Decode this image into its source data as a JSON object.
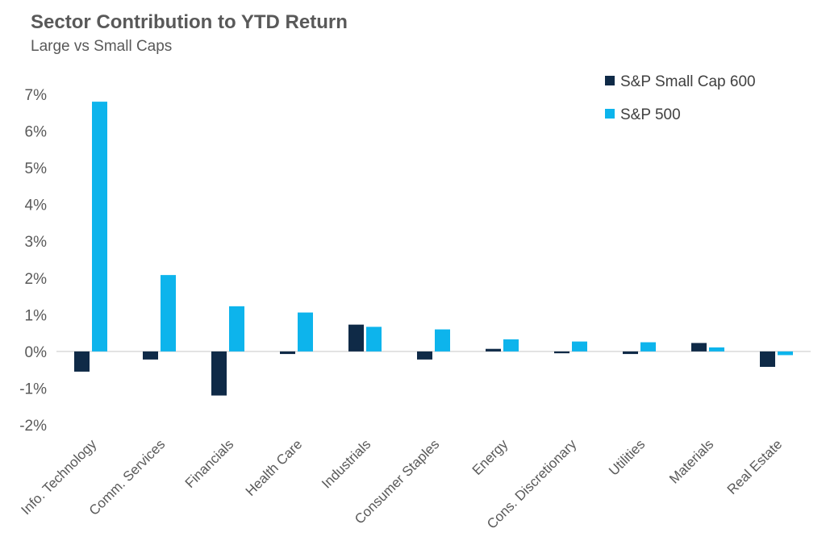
{
  "chart_data": {
    "type": "bar",
    "title": "Sector Contribution to YTD Return",
    "subtitle": "Large vs Small Caps",
    "xlabel": "",
    "ylabel": "",
    "ylim": [
      -2,
      7
    ],
    "yticks": [
      -2,
      -1,
      0,
      1,
      2,
      3,
      4,
      5,
      6,
      7
    ],
    "ytick_labels": [
      "-2%",
      "-1%",
      "0%",
      "1%",
      "2%",
      "3%",
      "4%",
      "5%",
      "6%",
      "7%"
    ],
    "grid": false,
    "legend_position": "top-right",
    "categories": [
      "Info. Technology",
      "Comm. Services",
      "Financials",
      "Health Care",
      "Industrials",
      "Consumer Staples",
      "Energy",
      "Cons. Discretionary",
      "Utilities",
      "Materials",
      "Real Estate"
    ],
    "series": [
      {
        "name": "S&P Small Cap 600",
        "color": "#0f2a47",
        "values": [
          -0.55,
          -0.22,
          -1.2,
          -0.07,
          0.73,
          -0.22,
          0.07,
          -0.05,
          -0.07,
          0.23,
          -0.42
        ]
      },
      {
        "name": "S&P 500",
        "color": "#0db4ec",
        "values": [
          6.8,
          2.08,
          1.23,
          1.06,
          0.67,
          0.6,
          0.33,
          0.27,
          0.25,
          0.11,
          -0.1
        ]
      }
    ]
  }
}
